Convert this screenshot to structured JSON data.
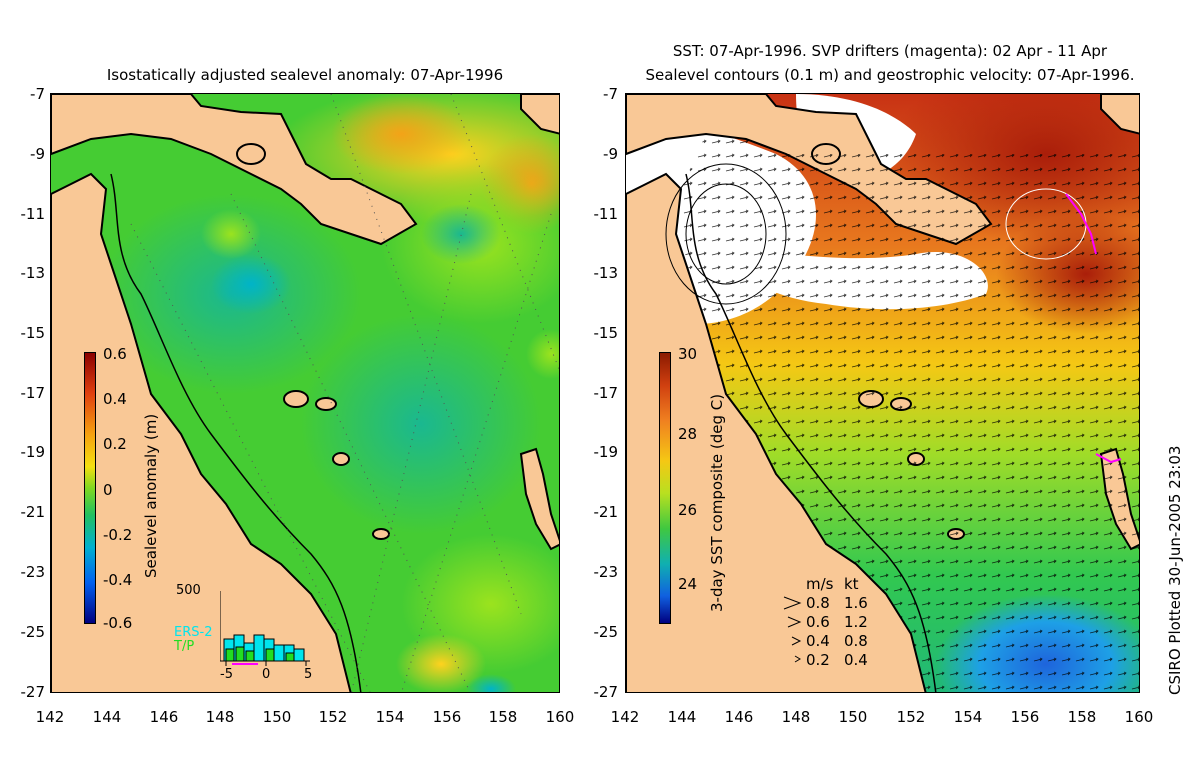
{
  "left_panel": {
    "title": "Isostatically adjusted sealevel anomaly: 07-Apr-1996",
    "colorbar": {
      "label": "Sealevel anomaly (m)",
      "ticks": [
        "0.6",
        "0.4",
        "0.2",
        "0",
        "-0.2",
        "-0.4",
        "-0.6"
      ]
    },
    "histogram": {
      "ymax_label": "500",
      "legend": [
        "ERS-2",
        "T/P"
      ],
      "xticks": [
        "-5",
        "0",
        "5"
      ],
      "ers2_color": "#00e5ee",
      "tp_color": "#22dd22"
    }
  },
  "right_panel": {
    "title_line1": "SST: 07-Apr-1996. SVP drifters (magenta): 02 Apr - 11 Apr",
    "title_line2": "Sealevel contours (0.1 m) and geostrophic velocity: 07-Apr-1996.",
    "colorbar": {
      "label": "3-day SST composite (deg C)",
      "ticks": [
        "30",
        "28",
        "26",
        "24"
      ]
    },
    "velocity_legend": {
      "header_ms": "m/s",
      "header_kt": "kt",
      "rows": [
        {
          "ms": "0.8",
          "kt": "1.6"
        },
        {
          "ms": "0.6",
          "kt": "1.2"
        },
        {
          "ms": "0.4",
          "kt": "0.8"
        },
        {
          "ms": "0.2",
          "kt": "0.4"
        }
      ]
    }
  },
  "axes": {
    "lat_ticks": [
      "-7",
      "-9",
      "-11",
      "-13",
      "-15",
      "-17",
      "-19",
      "-21",
      "-23",
      "-25",
      "-27"
    ],
    "lon_ticks": [
      "142",
      "144",
      "146",
      "148",
      "150",
      "152",
      "154",
      "156",
      "158",
      "160"
    ]
  },
  "credit": "CSIRO Plotted 30-Jun-2005 23:03",
  "colors": {
    "land": "#f9c896",
    "sea_green": "#4cd43a",
    "sst_hot": "#c83214",
    "cloud": "#ffffff"
  }
}
